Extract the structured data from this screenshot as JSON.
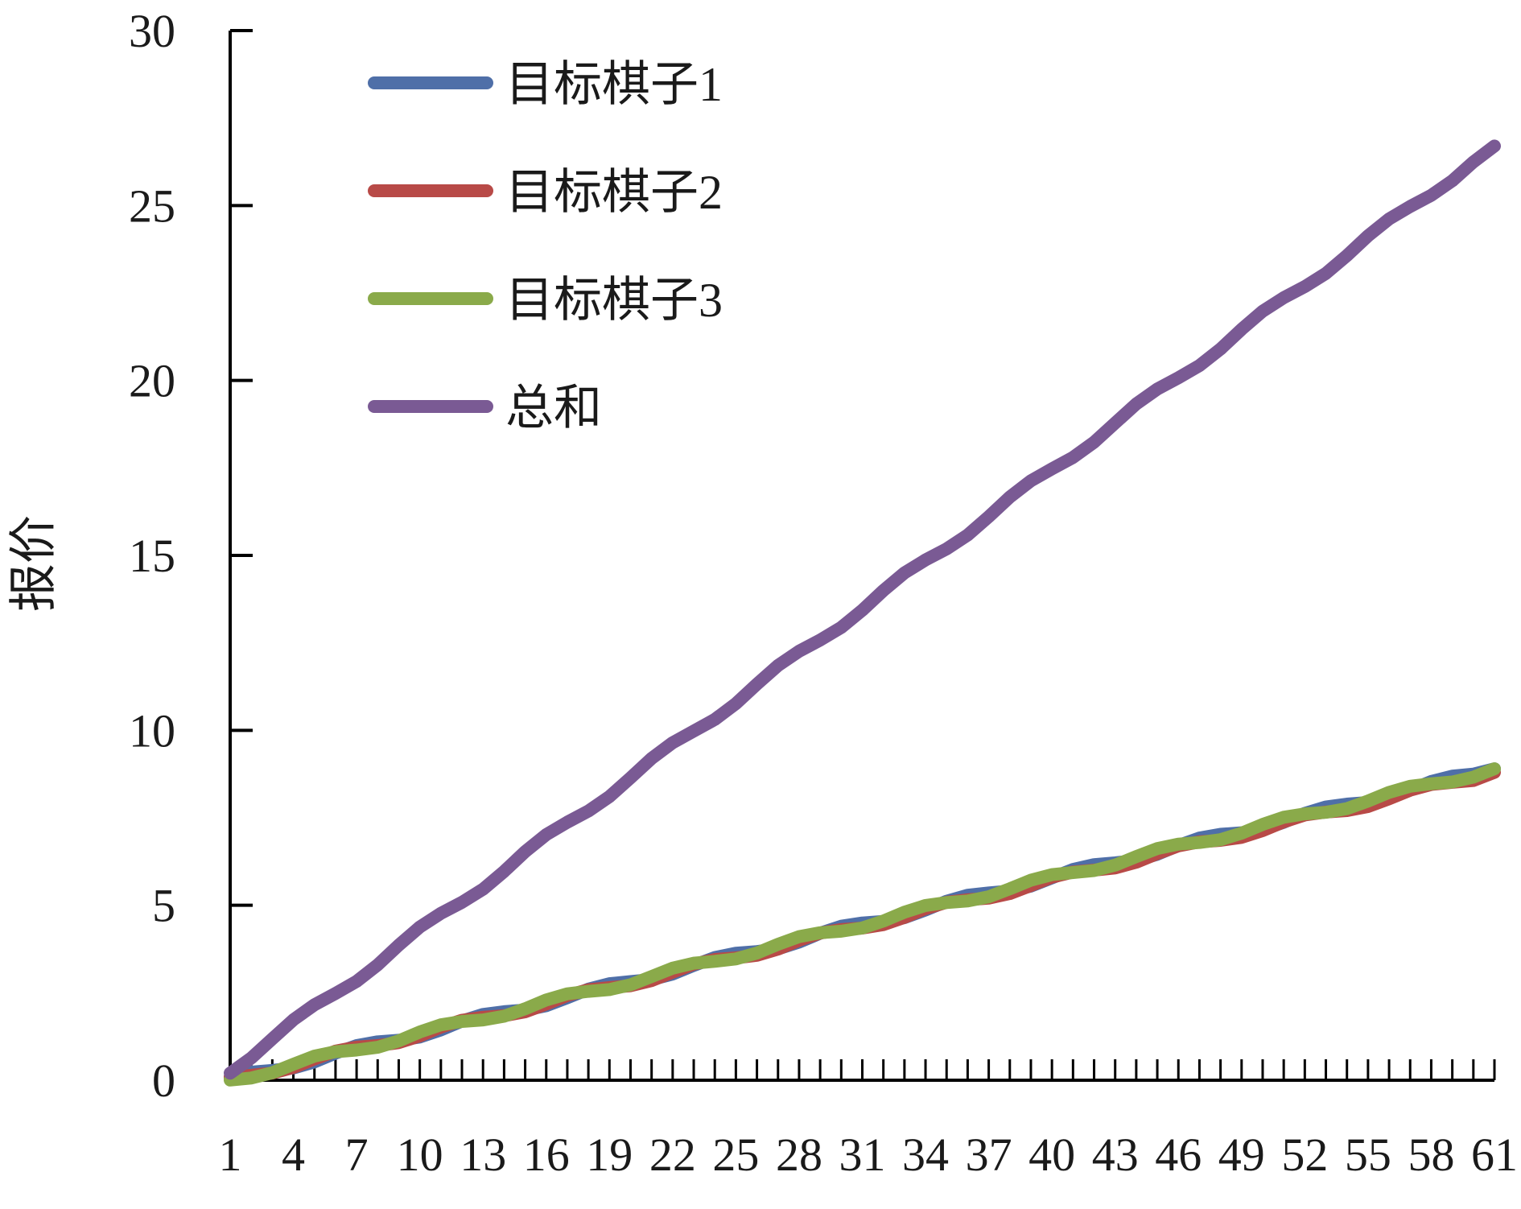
{
  "chart_data": {
    "type": "line",
    "ylabel": "报价",
    "xlabel": "",
    "ylim": [
      0,
      30
    ],
    "yticks": [
      0,
      5,
      10,
      15,
      20,
      25,
      30
    ],
    "x": [
      1,
      61
    ],
    "x_tick_count": 61,
    "x_tick_labels": [
      "1",
      "4",
      "7",
      "10",
      "13",
      "16",
      "19",
      "22",
      "25",
      "28",
      "31",
      "34",
      "37",
      "40",
      "43",
      "46",
      "49",
      "52",
      "55",
      "58",
      "61"
    ],
    "grid": false,
    "legend_position": "top-left",
    "series": [
      {
        "name": "目标棋子1",
        "color": "#4f6fa8",
        "values": [
          0.0,
          8.9
        ]
      },
      {
        "name": "目标棋子2",
        "color": "#b84a47",
        "values": [
          0.0,
          8.8
        ]
      },
      {
        "name": "目标棋子3",
        "color": "#8aaa4a",
        "values": [
          0.0,
          8.9
        ]
      },
      {
        "name": "总和",
        "color": "#7a5a94",
        "values": [
          0.3,
          26.7
        ]
      }
    ]
  }
}
